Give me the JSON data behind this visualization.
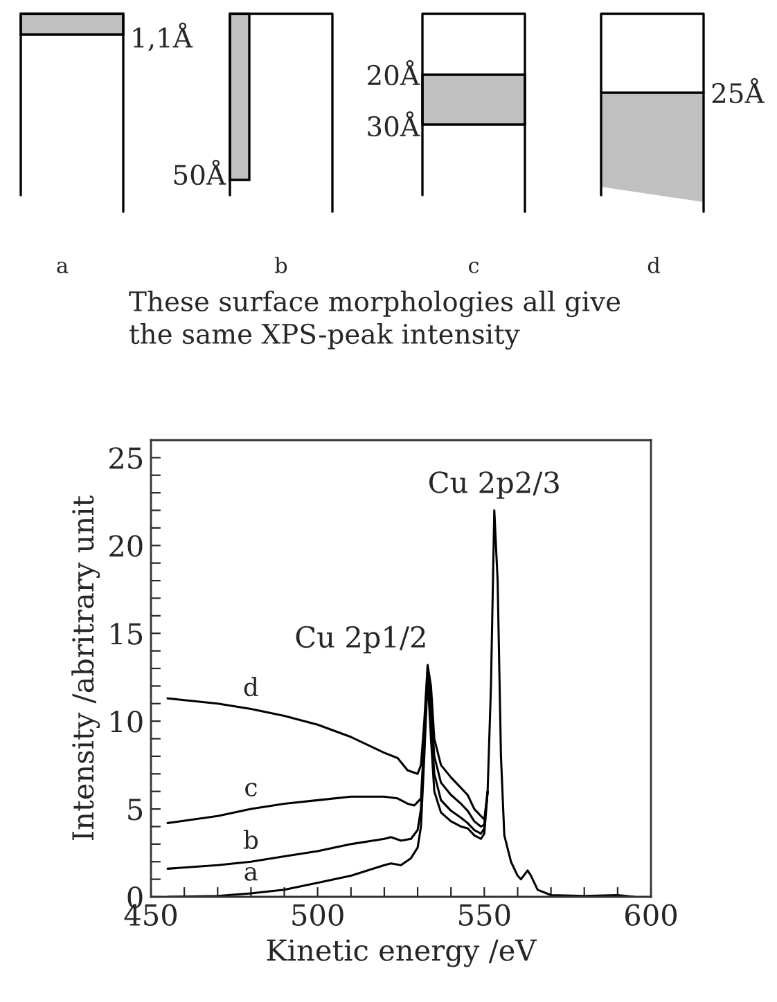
{
  "chart_data": {
    "type": "line",
    "xlabel": "Kinetic energy /eV",
    "ylabel": "Intensity /abritrary unit",
    "xlim": [
      450,
      600
    ],
    "ylim": [
      0,
      26
    ],
    "xticks": [
      450,
      {
        "value": 460,
        "label": null
      },
      {
        "value": 470,
        "label": null
      },
      {
        "value": 480,
        "label": null
      },
      {
        "value": 490,
        "label": null
      },
      500,
      {
        "value": 510,
        "label": null
      },
      {
        "value": 520,
        "label": null
      },
      {
        "value": 530,
        "label": null
      },
      {
        "value": 540,
        "label": null
      },
      550,
      {
        "value": 560,
        "label": null
      },
      {
        "value": 570,
        "label": null
      },
      {
        "value": 580,
        "label": null
      },
      {
        "value": 590,
        "label": null
      },
      600
    ],
    "yticks": [
      0,
      {
        "value": 1,
        "label": null
      },
      {
        "value": 2,
        "label": null
      },
      {
        "value": 3,
        "label": null
      },
      {
        "value": 4,
        "label": null
      },
      5,
      {
        "value": 6,
        "label": null
      },
      {
        "value": 7,
        "label": null
      },
      {
        "value": 8,
        "label": null
      },
      {
        "value": 9,
        "label": null
      },
      10,
      {
        "value": 11,
        "label": null
      },
      {
        "value": 12,
        "label": null
      },
      {
        "value": 13,
        "label": null
      },
      {
        "value": 14,
        "label": null
      },
      15,
      {
        "value": 16,
        "label": null
      },
      {
        "value": 17,
        "label": null
      },
      {
        "value": 18,
        "label": null
      },
      {
        "value": 19,
        "label": null
      },
      20,
      {
        "value": 21,
        "label": null
      },
      {
        "value": 22,
        "label": null
      },
      {
        "value": 23,
        "label": null
      },
      {
        "value": 24,
        "label": null
      },
      25
    ],
    "grid": false,
    "legend": false,
    "marker": "none",
    "line_style": "solid",
    "series": [
      {
        "name": "a",
        "color": "#000000",
        "x": [
          455,
          470,
          480,
          490,
          500,
          510,
          520,
          522,
          525,
          528,
          530,
          531,
          532,
          533,
          534,
          535,
          537,
          540,
          543,
          545,
          547,
          549,
          550,
          551
        ],
        "values": [
          0,
          0.05,
          0.2,
          0.4,
          0.8,
          1.2,
          1.8,
          1.9,
          1.8,
          2.2,
          2.8,
          4,
          8,
          12.5,
          9,
          6,
          4.8,
          4.3,
          4.0,
          3.9,
          3.5,
          3.3,
          3.6,
          6
        ]
      },
      {
        "name": "b",
        "color": "#000000",
        "x": [
          455,
          470,
          480,
          490,
          500,
          510,
          520,
          522,
          525,
          528,
          530,
          531,
          532,
          533,
          534,
          535,
          537,
          540,
          543,
          545,
          547,
          549,
          550,
          551
        ],
        "values": [
          1.6,
          1.8,
          2.0,
          2.3,
          2.6,
          3.0,
          3.3,
          3.4,
          3.2,
          3.3,
          3.8,
          5,
          9,
          12.8,
          10,
          7,
          5.5,
          4.9,
          4.5,
          4.2,
          3.8,
          3.6,
          3.9,
          6
        ]
      },
      {
        "name": "c",
        "color": "#000000",
        "x": [
          455,
          470,
          480,
          490,
          500,
          510,
          520,
          524,
          527,
          529,
          531,
          532,
          533,
          534,
          535,
          537,
          540,
          543,
          545,
          547,
          549,
          550,
          551
        ],
        "values": [
          4.2,
          4.6,
          5.0,
          5.3,
          5.5,
          5.7,
          5.7,
          5.6,
          5.3,
          5.2,
          5.6,
          9,
          13.0,
          11,
          8,
          6.5,
          5.8,
          5.3,
          4.9,
          4.3,
          4.0,
          4.1,
          6
        ]
      },
      {
        "name": "d",
        "color": "#000000",
        "x": [
          455,
          470,
          480,
          490,
          500,
          510,
          520,
          524,
          527,
          530,
          531,
          532,
          533,
          534,
          535,
          537,
          540,
          543,
          545,
          547,
          549,
          550,
          551,
          552,
          553,
          554,
          555,
          556,
          558,
          560,
          561,
          563,
          564,
          566,
          570,
          580,
          590,
          595
        ],
        "values": [
          11.3,
          11.0,
          10.7,
          10.3,
          9.8,
          9.1,
          8.2,
          7.9,
          7.2,
          7.0,
          7.5,
          10,
          13.2,
          12,
          9,
          7.5,
          6.8,
          6.2,
          5.8,
          5.0,
          4.6,
          4.4,
          6,
          12,
          22,
          18,
          8,
          3.5,
          2.0,
          1.2,
          1.0,
          1.5,
          1.2,
          0.4,
          0.1,
          0.05,
          0.1,
          0
        ]
      }
    ],
    "annotations": [
      "1,1Å",
      "50Å",
      "20Å",
      "30Å",
      "25Å",
      "a",
      "b",
      "c",
      "d",
      "These surface morphologies all give\nthe same XPS-peak intensity",
      {
        "text": "Cu 2p1/2",
        "x": 533,
        "y": 13.2
      },
      {
        "text": "Cu 2p2/3",
        "x": 553,
        "y": 22
      }
    ]
  }
}
